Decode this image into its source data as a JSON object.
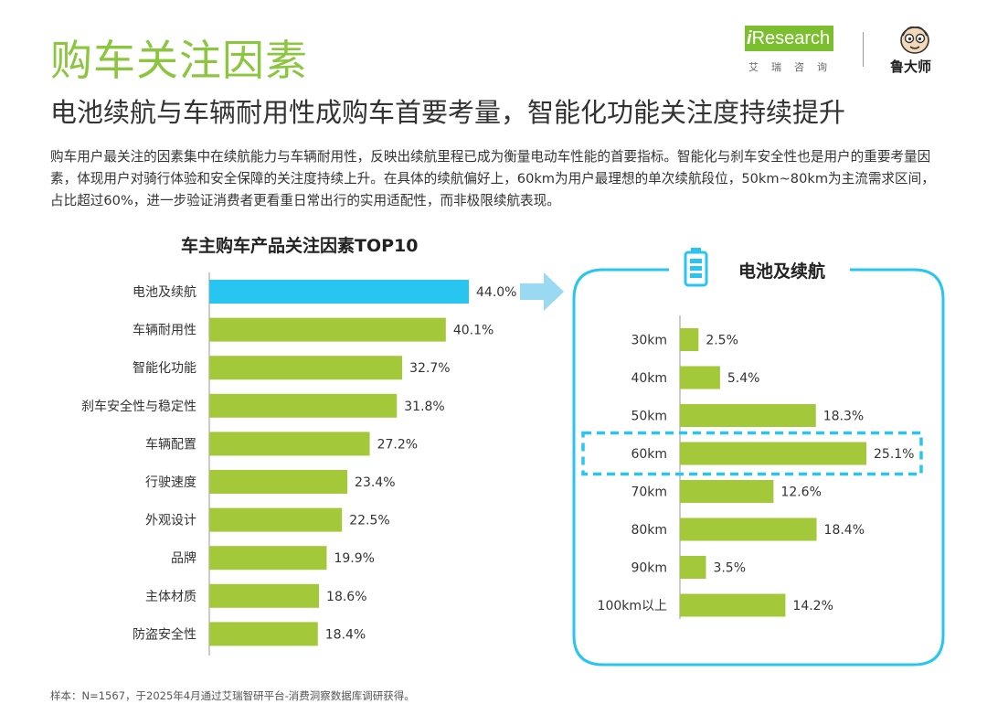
{
  "page": {
    "title": "购车关注因素",
    "subtitle": "电池续航与车辆耐用性成购车首要考量，智能化功能关注度持续提升",
    "intro": "购车用户最关注的因素集中在续航能力与车辆耐用性，反映出续航里程已成为衡量电动车性能的首要指标。智能化与刹车安全性也是用户的重要考量因素，体现用户对骑行体验和安全保障的关注度持续上升。在具体的续航偏好上，60km为用户最理想的单次续航段位，50km~80km为主流需求区间，占比超过60%，进一步验证消费者更看重日常出行的实用适配性，而非极限续航表现。",
    "footnote": "样本：N=1567，于2025年4月通过艾瑞智研平台-消费洞察数据库调研获得。"
  },
  "logos": {
    "iresearch_badge_i": "i",
    "iresearch_badge_rest": "Research",
    "iresearch_cn": "艾瑞咨询",
    "luda_name": "鲁大师"
  },
  "colors": {
    "title_green": "#8cc63f",
    "bar_green": "#a3c93a",
    "bar_highlight_blue": "#29c5f1",
    "panel_border_blue": "#29c5f1"
  },
  "chart_data": [
    {
      "type": "bar",
      "orientation": "horizontal",
      "title": "车主购车产品关注因素TOP10",
      "categories": [
        "电池及续航",
        "车辆耐用性",
        "智能化功能",
        "刹车安全性与稳定性",
        "车辆配置",
        "行驶速度",
        "外观设计",
        "品牌",
        "主体材质",
        "防盗安全性"
      ],
      "values": [
        44.0,
        40.1,
        32.7,
        31.8,
        27.2,
        23.4,
        22.5,
        19.9,
        18.6,
        18.4
      ],
      "value_labels": [
        "44.0%",
        "40.1%",
        "32.7%",
        "31.8%",
        "27.2%",
        "23.4%",
        "22.5%",
        "19.9%",
        "18.6%",
        "18.4%"
      ],
      "unit": "%",
      "highlight_category": "电池及续航",
      "xlim": [
        0,
        44.0
      ]
    },
    {
      "type": "bar",
      "orientation": "horizontal",
      "title": "电池及续航",
      "title_icon": "battery-icon",
      "categories": [
        "30km",
        "40km",
        "50km",
        "60km",
        "70km",
        "80km",
        "90km",
        "100km以上"
      ],
      "values": [
        2.5,
        5.4,
        18.3,
        25.1,
        12.6,
        18.4,
        3.5,
        14.2
      ],
      "value_labels": [
        "2.5%",
        "5.4%",
        "18.3%",
        "25.1%",
        "12.6%",
        "18.4%",
        "3.5%",
        "14.2%"
      ],
      "unit": "%",
      "highlight_category": "60km",
      "xlim": [
        0,
        25.1
      ]
    }
  ]
}
